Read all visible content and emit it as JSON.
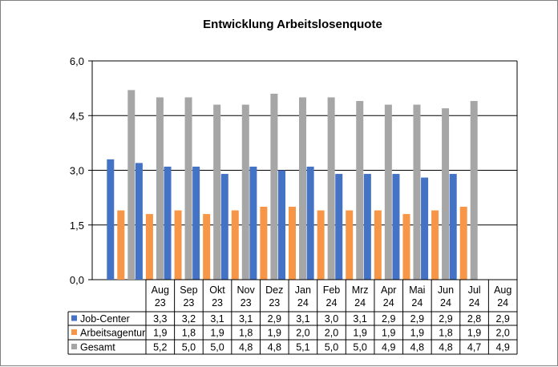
{
  "chart_data": {
    "type": "bar",
    "title": "Entwicklung  Arbeitslosenquote",
    "categories": [
      [
        "Aug",
        "23"
      ],
      [
        "Sep",
        "23"
      ],
      [
        "Okt",
        "23"
      ],
      [
        "Nov",
        "23"
      ],
      [
        "Dez",
        "23"
      ],
      [
        "Jan",
        "24"
      ],
      [
        "Feb",
        "24"
      ],
      [
        "Mrz",
        "24"
      ],
      [
        "Apr",
        "24"
      ],
      [
        "Mai",
        "24"
      ],
      [
        "Jun",
        "24"
      ],
      [
        "Jul",
        "24"
      ],
      [
        "Aug",
        "24"
      ]
    ],
    "ylim": [
      0,
      6
    ],
    "yticks": [
      0,
      1.5,
      3,
      4.5,
      6
    ],
    "ytick_labels": [
      "0,0",
      "1,5",
      "3,0",
      "4,5",
      "6,0"
    ],
    "grid": true,
    "legend": "data-table",
    "series": [
      {
        "name": "Job-Center",
        "color": "#4472C4",
        "values": [
          3.3,
          3.2,
          3.1,
          3.1,
          2.9,
          3.1,
          3.0,
          3.1,
          2.9,
          2.9,
          2.9,
          2.8,
          2.9
        ],
        "labels": [
          "3,3",
          "3,2",
          "3,1",
          "3,1",
          "2,9",
          "3,1",
          "3,0",
          "3,1",
          "2,9",
          "2,9",
          "2,9",
          "2,8",
          "2,9"
        ]
      },
      {
        "name": "Arbeitsagentur",
        "color": "#F79646",
        "values": [
          1.9,
          1.8,
          1.9,
          1.8,
          1.9,
          2.0,
          2.0,
          1.9,
          1.9,
          1.9,
          1.8,
          1.9,
          2.0
        ],
        "labels": [
          "1,9",
          "1,8",
          "1,9",
          "1,8",
          "1,9",
          "2,0",
          "2,0",
          "1,9",
          "1,9",
          "1,9",
          "1,8",
          "1,9",
          "2,0"
        ]
      },
      {
        "name": "Gesamt",
        "color": "#A6A6A6",
        "values": [
          5.2,
          5.0,
          5.0,
          4.8,
          4.8,
          5.1,
          5.0,
          5.0,
          4.9,
          4.8,
          4.8,
          4.7,
          4.9
        ],
        "labels": [
          "5,2",
          "5,0",
          "5,0",
          "4,8",
          "4,8",
          "5,1",
          "5,0",
          "5,0",
          "4,9",
          "4,8",
          "4,8",
          "4,7",
          "4,9"
        ]
      }
    ]
  }
}
